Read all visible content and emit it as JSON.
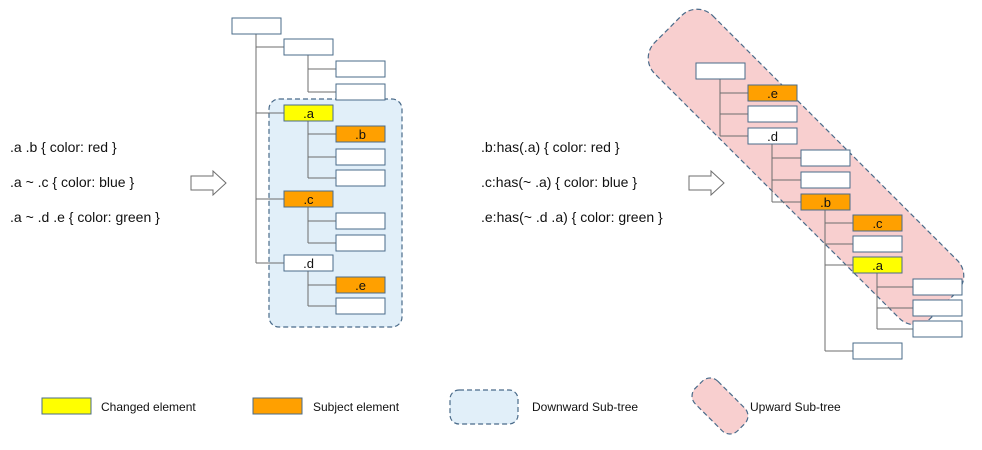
{
  "colors": {
    "changed": "#ffff00",
    "subject": "#ffa000",
    "downward": "#e1eff9",
    "upward": "#f8cfcf",
    "node_stroke": "#4a6b8a",
    "line": "#6d6d6d"
  },
  "left_rules": {
    "rule1": ".a .b { color: red }",
    "rule2": ".a ~ .c { color: blue }",
    "rule3": ".a ~ .d .e { color: green }"
  },
  "right_rules": {
    "rule1": ".b:has(.a) { color: red }",
    "rule2": ".c:has(~ .a) { color: blue }",
    "rule3": ".e:has(~ .d .a) { color: green }"
  },
  "left_tree": {
    "a": ".a",
    "b": ".b",
    "c": ".c",
    "d": ".d",
    "e": ".e"
  },
  "right_tree": {
    "e": ".e",
    "d": ".d",
    "b": ".b",
    "c": ".c",
    "a": ".a"
  },
  "legend": {
    "changed": "Changed element",
    "subject": "Subject element",
    "downward": "Downward Sub-tree",
    "upward": "Upward Sub-tree"
  }
}
